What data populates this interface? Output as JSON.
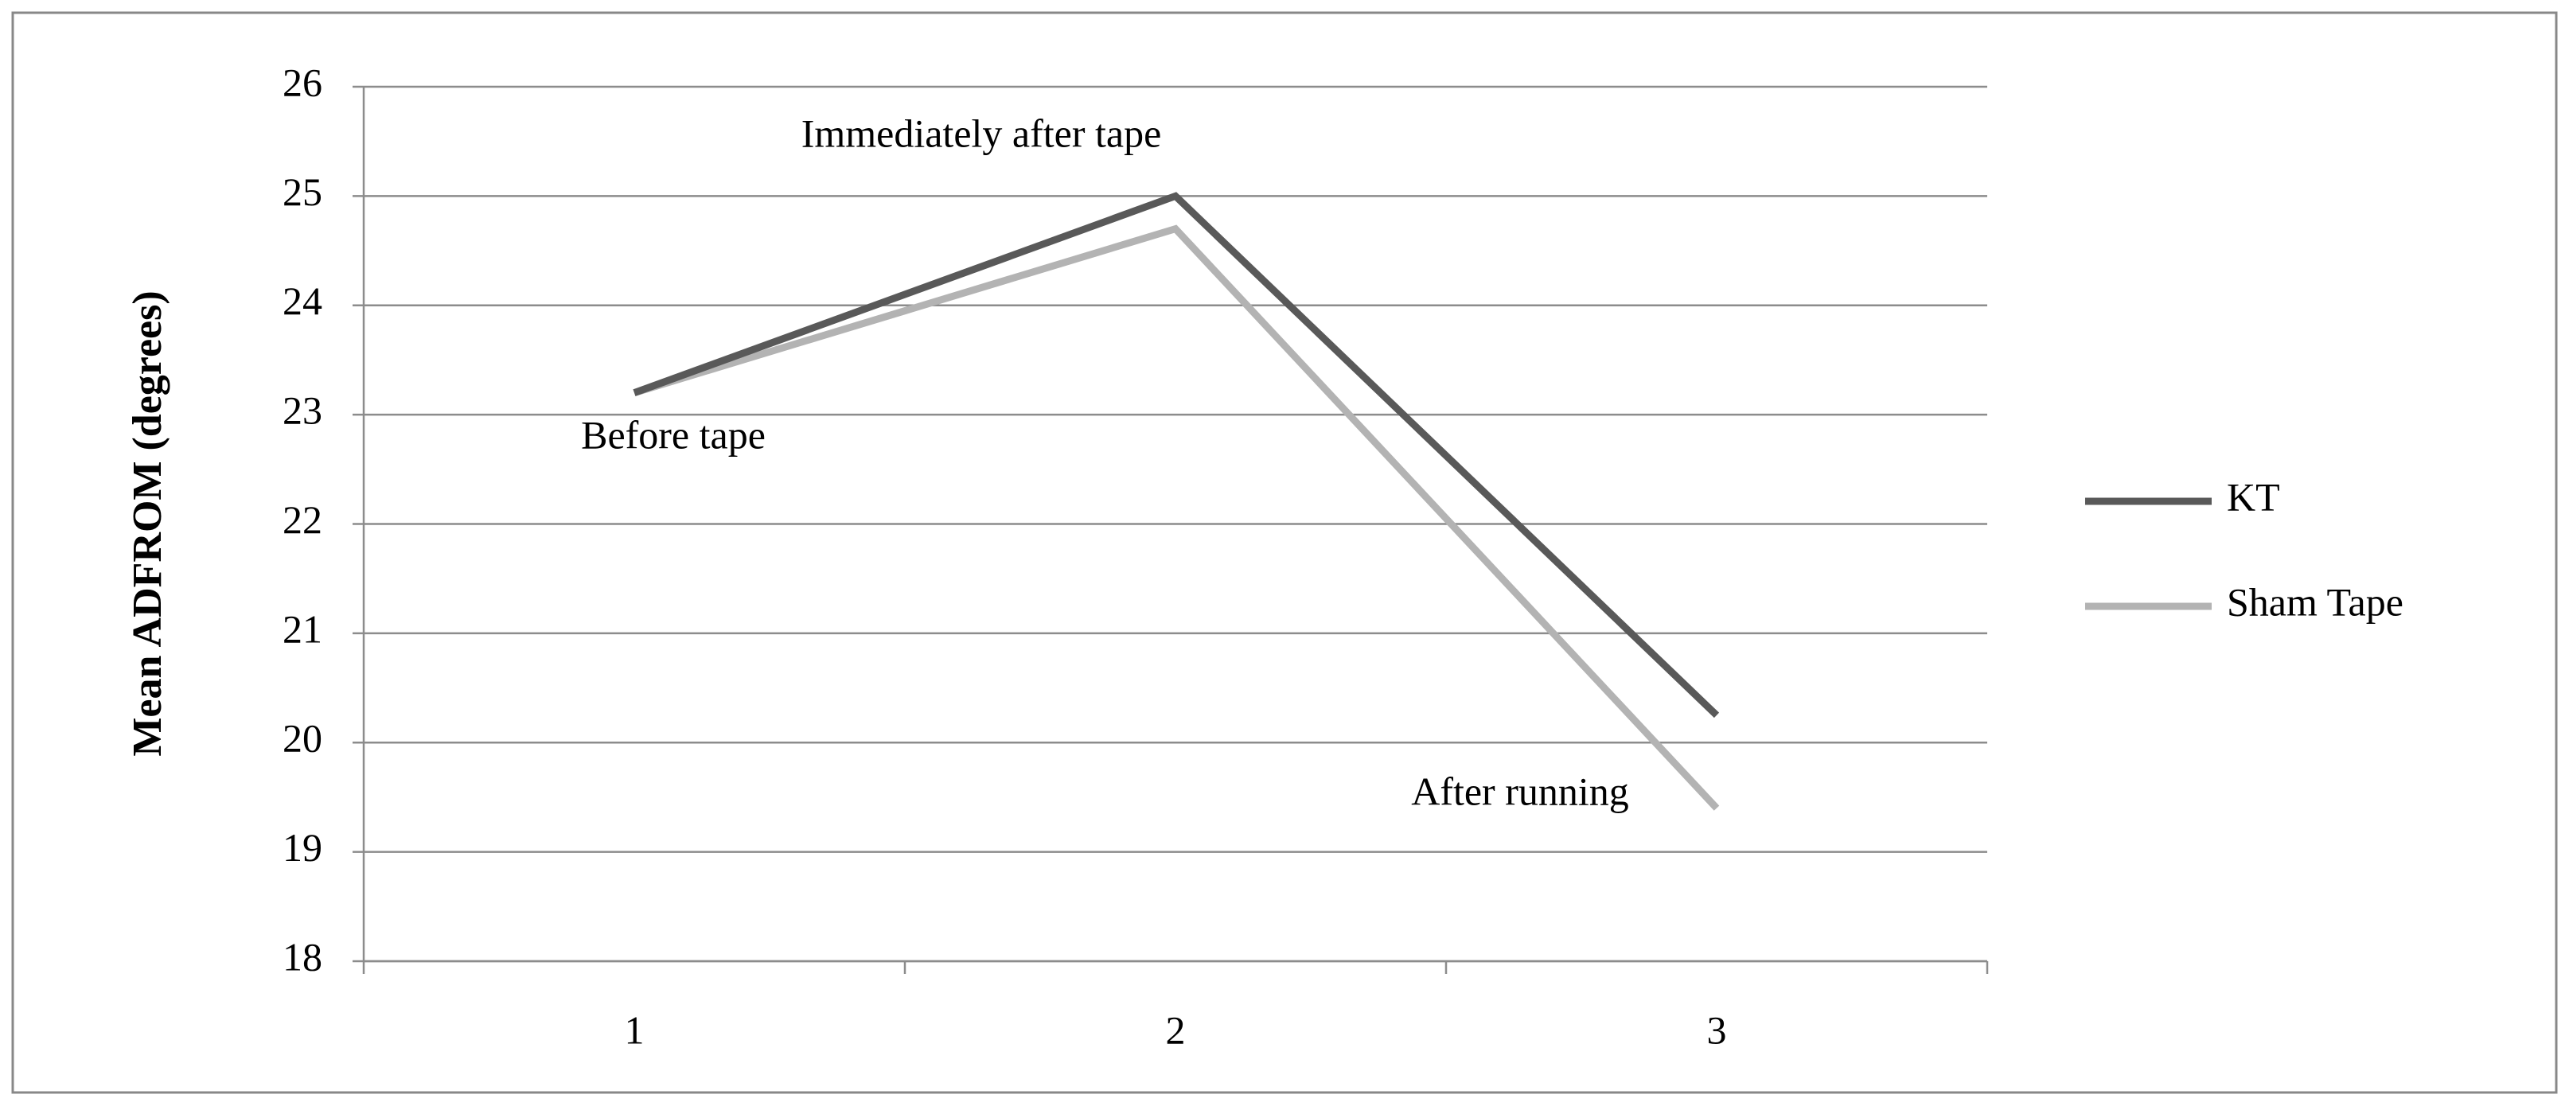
{
  "chart_data": {
    "type": "line",
    "y_label": "Mean ADFROM (degrees)",
    "categories": [
      "1",
      "2",
      "3"
    ],
    "series": [
      {
        "name": "KT",
        "color": "#595959",
        "values": [
          23.2,
          25.0,
          20.25
        ]
      },
      {
        "name": "Sham Tape",
        "color": "#b3b3b3",
        "values": [
          23.2,
          24.7,
          19.4
        ]
      }
    ],
    "annotations": [
      "Before tape",
      "Immediately after tape",
      "After running"
    ],
    "ylim": [
      18,
      26
    ],
    "yticks": [
      18,
      19,
      20,
      21,
      22,
      23,
      24,
      25,
      26
    ],
    "grid": true,
    "legend": "right"
  }
}
